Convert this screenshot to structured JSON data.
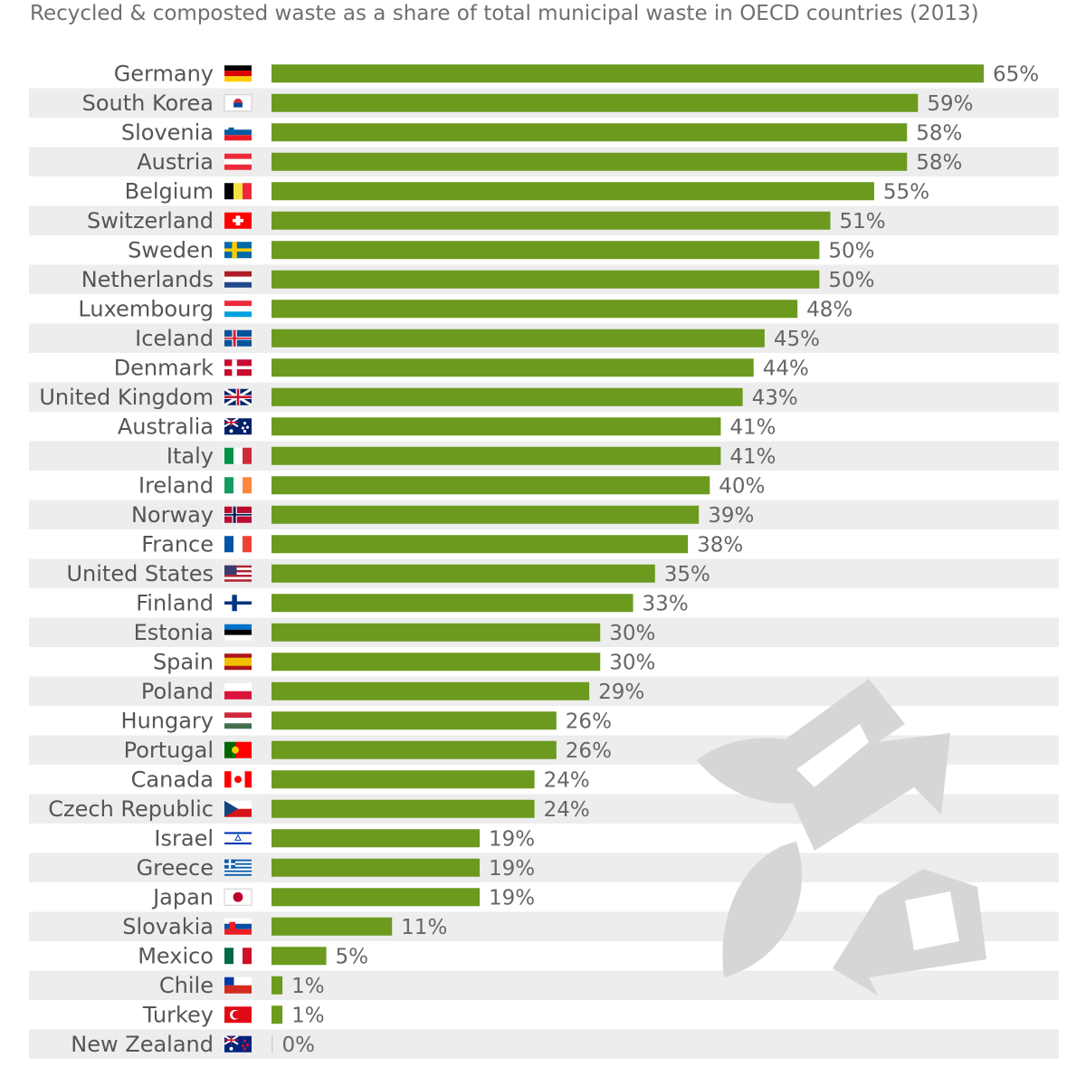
{
  "chart_data": {
    "type": "bar",
    "orientation": "horizontal",
    "subtitle": "Recycled & composted waste as a share of total municipal waste in OECD countries (2013)",
    "unit": "%",
    "xlim": [
      0,
      65
    ],
    "grid": false,
    "legend": "none",
    "colors": {
      "bar": "#6b9a1e",
      "stripe": "#ededed",
      "label": "#555555",
      "value": "#666666",
      "watermark": "#d4d4d4"
    },
    "categories": [
      "Germany",
      "South Korea",
      "Slovenia",
      "Austria",
      "Belgium",
      "Switzerland",
      "Sweden",
      "Netherlands",
      "Luxembourg",
      "Iceland",
      "Denmark",
      "United Kingdom",
      "Australia",
      "Italy",
      "Ireland",
      "Norway",
      "France",
      "United States",
      "Finland",
      "Estonia",
      "Spain",
      "Poland",
      "Hungary",
      "Portugal",
      "Canada",
      "Czech Republic",
      "Israel",
      "Greece",
      "Japan",
      "Slovakia",
      "Mexico",
      "Chile",
      "Turkey",
      "New Zealand"
    ],
    "values": [
      65,
      59,
      58,
      58,
      55,
      51,
      50,
      50,
      48,
      45,
      44,
      43,
      41,
      41,
      40,
      39,
      38,
      35,
      33,
      30,
      30,
      29,
      26,
      26,
      24,
      24,
      19,
      19,
      19,
      11,
      5,
      1,
      1,
      0
    ],
    "value_labels": [
      "65%",
      "59%",
      "58%",
      "58%",
      "55%",
      "51%",
      "50%",
      "50%",
      "48%",
      "45%",
      "44%",
      "43%",
      "41%",
      "41%",
      "40%",
      "39%",
      "38%",
      "35%",
      "33%",
      "30%",
      "30%",
      "29%",
      "26%",
      "26%",
      "24%",
      "24%",
      "19%",
      "19%",
      "19%",
      "11%",
      "5%",
      "1%",
      "1%",
      "0%"
    ],
    "flag_icons": [
      "flag-de",
      "flag-kr",
      "flag-si",
      "flag-at",
      "flag-be",
      "flag-ch",
      "flag-se",
      "flag-nl",
      "flag-lu",
      "flag-is",
      "flag-dk",
      "flag-gb",
      "flag-au",
      "flag-it",
      "flag-ie",
      "flag-no",
      "flag-fr",
      "flag-us",
      "flag-fi",
      "flag-ee",
      "flag-es",
      "flag-pl",
      "flag-hu",
      "flag-pt",
      "flag-ca",
      "flag-cz",
      "flag-il",
      "flag-gr",
      "flag-jp",
      "flag-sk",
      "flag-mx",
      "flag-cl",
      "flag-tr",
      "flag-nz"
    ],
    "watermark_icon": "recycling-leaf-icon"
  }
}
